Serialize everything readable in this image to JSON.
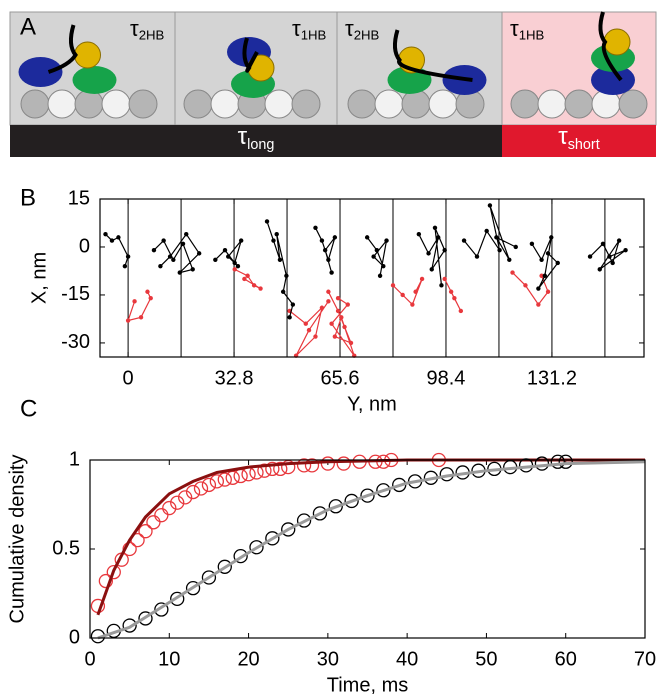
{
  "panel_a": {
    "label": "A",
    "states": [
      {
        "symbol": "τ",
        "subscript": "2HB"
      },
      {
        "symbol": "τ",
        "subscript": "1HB"
      },
      {
        "symbol": "τ",
        "subscript": "2HB"
      },
      {
        "symbol": "τ",
        "subscript": "1HB"
      }
    ],
    "bars": [
      {
        "symbol": "τ",
        "subscript": "long",
        "color": "#231f20"
      },
      {
        "symbol": "τ",
        "subscript": "short",
        "color": "#e0182d"
      }
    ]
  },
  "chart_data": [
    {
      "type": "line",
      "panel_label": "B",
      "x_label": "Y, nm",
      "y_label": "X, nm",
      "xlim": [
        -8.7,
        159.7
      ],
      "ylim": [
        -34.4,
        15
      ],
      "xticks": [
        0,
        32.8,
        65.6,
        98.4,
        131.2
      ],
      "yticks": [
        15,
        0,
        -15,
        -30
      ],
      "vlines": [
        0,
        16.4,
        32.8,
        49.2,
        65.6,
        82,
        98.4,
        114.8,
        131.2,
        147.6
      ],
      "series": [
        {
          "color": "#e8383d",
          "line": true,
          "marker": "dot",
          "x": [
            2,
            0,
            4,
            7,
            6,
            null,
            33,
            37,
            39,
            41,
            36,
            null,
            50,
            55,
            60,
            58,
            52,
            56,
            62,
            null,
            62,
            65,
            67,
            69,
            64,
            66,
            70,
            63,
            68,
            65,
            null,
            82,
            85,
            88,
            91,
            89,
            null,
            98,
            101,
            103,
            100,
            null,
            119,
            123,
            127,
            130,
            128
          ],
          "values": [
            -17,
            -23,
            -22,
            -16,
            -14,
            null,
            -7,
            -9,
            -12,
            -13,
            -10,
            null,
            -20,
            -24,
            -19,
            -28,
            -34,
            -26,
            -17,
            null,
            -14,
            -20,
            -25,
            -30,
            -28,
            -22,
            -34,
            -24,
            -18,
            -16,
            null,
            -12,
            -15,
            -18,
            -10,
            -14,
            null,
            -10,
            -16,
            -20,
            -14,
            null,
            -8,
            -12,
            -18,
            -14,
            -9
          ]
        },
        {
          "color": "#000000",
          "line": true,
          "marker": "dot",
          "x": [
            -7,
            -5,
            -3,
            0,
            -1,
            null,
            8,
            11,
            14,
            17,
            20,
            16,
            22,
            18,
            13,
            10,
            null,
            27,
            30,
            33,
            35,
            31,
            34,
            null,
            43,
            45,
            47,
            46,
            49,
            48,
            51,
            50,
            null,
            58,
            60,
            62,
            64,
            61,
            63,
            null,
            74,
            77,
            79,
            76,
            80,
            78,
            null,
            90,
            93,
            96,
            94,
            98,
            95,
            97,
            null,
            104,
            108,
            111,
            115,
            112,
            118,
            114,
            120,
            null,
            125,
            128,
            131,
            129,
            127,
            133,
            130,
            null,
            143,
            147,
            150,
            152,
            146,
            154,
            149
          ],
          "values": [
            4,
            2,
            3,
            -3,
            -6,
            null,
            -1,
            2,
            -4,
            1,
            -7,
            -8,
            -2,
            4,
            -3,
            -6,
            null,
            -4,
            -1,
            -5,
            2,
            -3,
            -6,
            null,
            8,
            2,
            -4,
            4,
            -9,
            -14,
            -18,
            -22,
            null,
            6,
            2,
            -4,
            3,
            -1,
            -8,
            null,
            3,
            -1,
            -6,
            -3,
            2,
            -9,
            null,
            4,
            -2,
            3,
            -7,
            -1,
            6,
            -12,
            null,
            2,
            -3,
            5,
            -1,
            13,
            -4,
            3,
            0,
            null,
            1,
            -4,
            3,
            -9,
            -13,
            -5,
            -2,
            null,
            -3,
            1,
            -5,
            2,
            -7,
            -1,
            -3
          ]
        }
      ]
    },
    {
      "type": "scatter",
      "panel_label": "C",
      "x_label": "Time, ms",
      "y_label": "Cumulative density",
      "xlim": [
        0,
        70
      ],
      "ylim": [
        0,
        1
      ],
      "xticks": [
        0,
        10,
        20,
        30,
        40,
        50,
        60,
        70
      ],
      "yticks": [
        0,
        0.5,
        1
      ],
      "series": [
        {
          "color": "#e8383d",
          "marker": "circle",
          "x": [
            1,
            2,
            3,
            4,
            5,
            6,
            7,
            8,
            9,
            10,
            11,
            12,
            13,
            14,
            15,
            16,
            17,
            18,
            19,
            20,
            21,
            22,
            23,
            24,
            25,
            27,
            28,
            30,
            32,
            34,
            36,
            37,
            38,
            44
          ],
          "values": [
            0.18,
            0.32,
            0.37,
            0.44,
            0.5,
            0.55,
            0.6,
            0.65,
            0.69,
            0.73,
            0.76,
            0.79,
            0.82,
            0.84,
            0.86,
            0.88,
            0.89,
            0.9,
            0.91,
            0.92,
            0.93,
            0.94,
            0.95,
            0.95,
            0.96,
            0.97,
            0.97,
            0.98,
            0.98,
            0.99,
            0.99,
            0.99,
            1,
            1
          ]
        },
        {
          "color": "#8b1010",
          "line": true,
          "linewidth": 3,
          "x": [
            1,
            3,
            5,
            7,
            10,
            13,
            16,
            20,
            25,
            30,
            40,
            50,
            70
          ],
          "values": [
            0.13,
            0.38,
            0.55,
            0.68,
            0.81,
            0.88,
            0.93,
            0.96,
            0.98,
            0.99,
            1,
            1,
            1
          ]
        },
        {
          "color": "#000000",
          "marker": "circle",
          "x": [
            1,
            3,
            5,
            7,
            9,
            11,
            13,
            15,
            17,
            19,
            21,
            23,
            25,
            27,
            29,
            31,
            33,
            35,
            37,
            39,
            41,
            43,
            45,
            47,
            49,
            51,
            53,
            55,
            57,
            59,
            60
          ],
          "values": [
            0.01,
            0.04,
            0.07,
            0.11,
            0.16,
            0.22,
            0.28,
            0.34,
            0.4,
            0.46,
            0.51,
            0.56,
            0.61,
            0.66,
            0.7,
            0.74,
            0.77,
            0.8,
            0.83,
            0.86,
            0.88,
            0.9,
            0.92,
            0.93,
            0.94,
            0.95,
            0.96,
            0.97,
            0.98,
            0.99,
            0.99
          ]
        },
        {
          "color": "#9a9a9a",
          "line": true,
          "linewidth": 3,
          "x": [
            1,
            5,
            10,
            15,
            20,
            25,
            30,
            35,
            40,
            45,
            50,
            55,
            60,
            70
          ],
          "values": [
            0,
            0.06,
            0.2,
            0.34,
            0.48,
            0.61,
            0.72,
            0.8,
            0.87,
            0.91,
            0.94,
            0.96,
            0.98,
            0.99
          ]
        }
      ]
    }
  ]
}
